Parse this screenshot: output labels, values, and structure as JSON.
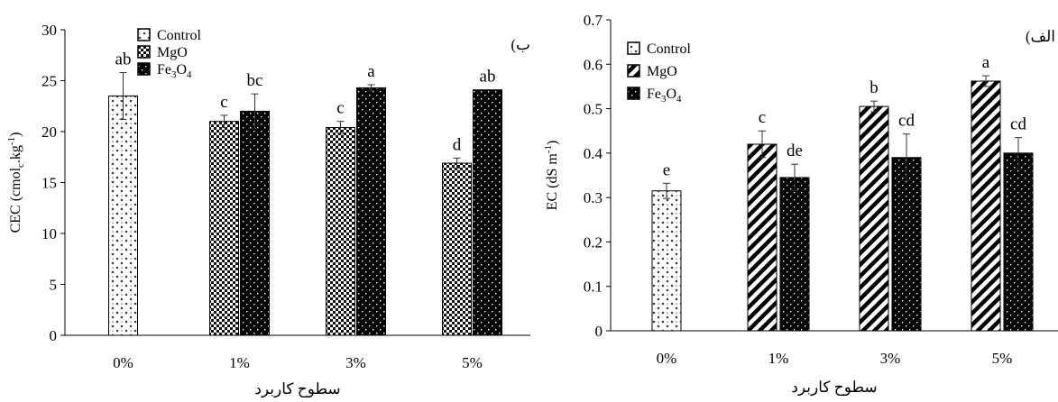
{
  "chart_data": [
    {
      "type": "bar",
      "panel_label": "(ب",
      "categories": [
        "0%",
        "1%",
        "3%",
        "5%"
      ],
      "xlabel": "سطوح کاربرد",
      "ylabel": {
        "base": "CEC (cmol",
        "sub": "c",
        "mid": ".kg",
        "sup": "-1",
        "end": ")"
      },
      "ylim": [
        0,
        30
      ],
      "yticks": [
        "0",
        "5",
        "10",
        "15",
        "20",
        "25",
        "30"
      ],
      "legend": [
        {
          "name": "Control",
          "pattern": "diamond"
        },
        {
          "name": "MgO",
          "pattern": "checker"
        },
        {
          "name": "Fe3O4",
          "label_main": "Fe",
          "label_sub1": "3",
          "label_mid": "O",
          "label_sub2": "4",
          "pattern": "dots"
        }
      ],
      "legend_position": "top-left",
      "bars": [
        {
          "category": "0%",
          "pattern": "diamond",
          "value": 23.5,
          "err": 2.3,
          "letter": "ab"
        },
        {
          "category": "1%",
          "pattern": "checker",
          "value": 21.0,
          "err": 0.6,
          "letter": "c"
        },
        {
          "category": "1%",
          "pattern": "dots",
          "value": 22.0,
          "err": 1.7,
          "letter": "bc"
        },
        {
          "category": "3%",
          "pattern": "checker",
          "value": 20.4,
          "err": 0.6,
          "letter": "c"
        },
        {
          "category": "3%",
          "pattern": "dots",
          "value": 24.3,
          "err": 0.3,
          "letter": "a"
        },
        {
          "category": "5%",
          "pattern": "checker",
          "value": 16.9,
          "err": 0.5,
          "letter": "d"
        },
        {
          "category": "5%",
          "pattern": "dots",
          "value": 24.1,
          "err": 0,
          "letter": "ab"
        }
      ]
    },
    {
      "type": "bar",
      "panel_label": "(الف",
      "categories": [
        "0%",
        "1%",
        "3%",
        "5%"
      ],
      "xlabel": "سطوح کاربرد",
      "ylabel": {
        "base": "EC (dS m",
        "sup": "-1",
        "end": ")"
      },
      "ylim": [
        0,
        0.7
      ],
      "yticks": [
        "0",
        "0.1",
        "0.2",
        "0.3",
        "0.4",
        "0.5",
        "0.6",
        "0.7"
      ],
      "legend": [
        {
          "name": "Control",
          "pattern": "diamond"
        },
        {
          "name": "MgO",
          "pattern": "hatch"
        },
        {
          "name": "Fe3O4",
          "label_main": "Fe",
          "label_sub1": "3",
          "label_mid": "O",
          "label_sub2": "4",
          "pattern": "dots"
        }
      ],
      "legend_position": "top-left",
      "bars": [
        {
          "category": "0%",
          "pattern": "diamond",
          "value": 0.315,
          "err": 0.017,
          "letter": "e"
        },
        {
          "category": "1%",
          "pattern": "hatch",
          "value": 0.42,
          "err": 0.03,
          "letter": "c"
        },
        {
          "category": "1%",
          "pattern": "dots",
          "value": 0.345,
          "err": 0.03,
          "letter": "de"
        },
        {
          "category": "3%",
          "pattern": "hatch",
          "value": 0.505,
          "err": 0.012,
          "letter": "b"
        },
        {
          "category": "3%",
          "pattern": "dots",
          "value": 0.39,
          "err": 0.053,
          "letter": "cd"
        },
        {
          "category": "5%",
          "pattern": "hatch",
          "value": 0.562,
          "err": 0.012,
          "letter": "a"
        },
        {
          "category": "5%",
          "pattern": "dots",
          "value": 0.4,
          "err": 0.035,
          "letter": "cd"
        }
      ]
    }
  ]
}
